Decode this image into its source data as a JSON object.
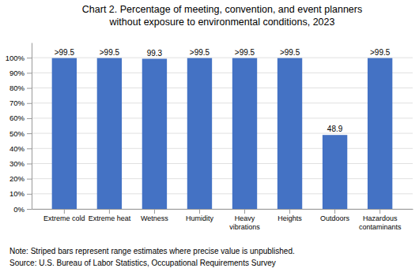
{
  "chart_data": {
    "type": "bar",
    "title": "Chart 2. Percentage of meeting, convention, and event planners\nwithout exposure to environmental conditions, 2023",
    "categories": [
      "Extreme cold",
      "Extreme heat",
      "Wetness",
      "Humidity",
      "Heavy\nvibrations",
      "Heights",
      "Outdoors",
      "Hazardous\ncontaminants"
    ],
    "values": [
      99.75,
      99.75,
      99.3,
      99.75,
      99.75,
      99.75,
      48.9,
      99.75
    ],
    "value_labels": [
      ">99.5",
      ">99.5",
      "99.3",
      ">99.5",
      ">99.5",
      ">99.5",
      "48.9",
      ">99.5"
    ],
    "data_labels": true,
    "color": "#4472C4",
    "ylim": [
      0,
      110
    ],
    "yticks": [
      {
        "value": 0,
        "label": "0%"
      },
      {
        "value": 10,
        "label": "10%"
      },
      {
        "value": 20,
        "label": "20%"
      },
      {
        "value": 30,
        "label": "30%"
      },
      {
        "value": 40,
        "label": "40%"
      },
      {
        "value": 50,
        "label": "50%"
      },
      {
        "value": 60,
        "label": "60%"
      },
      {
        "value": 70,
        "label": "70%"
      },
      {
        "value": 80,
        "label": "80%"
      },
      {
        "value": 90,
        "label": "90%"
      },
      {
        "value": 100,
        "label": "100%"
      }
    ],
    "grid": true,
    "annotations": [
      "Note: Striped bars represent range estimates where precise value is unpublished.",
      "Source: U.S. Bureau of Labor Statistics, Occupational Requirements Survey"
    ]
  }
}
